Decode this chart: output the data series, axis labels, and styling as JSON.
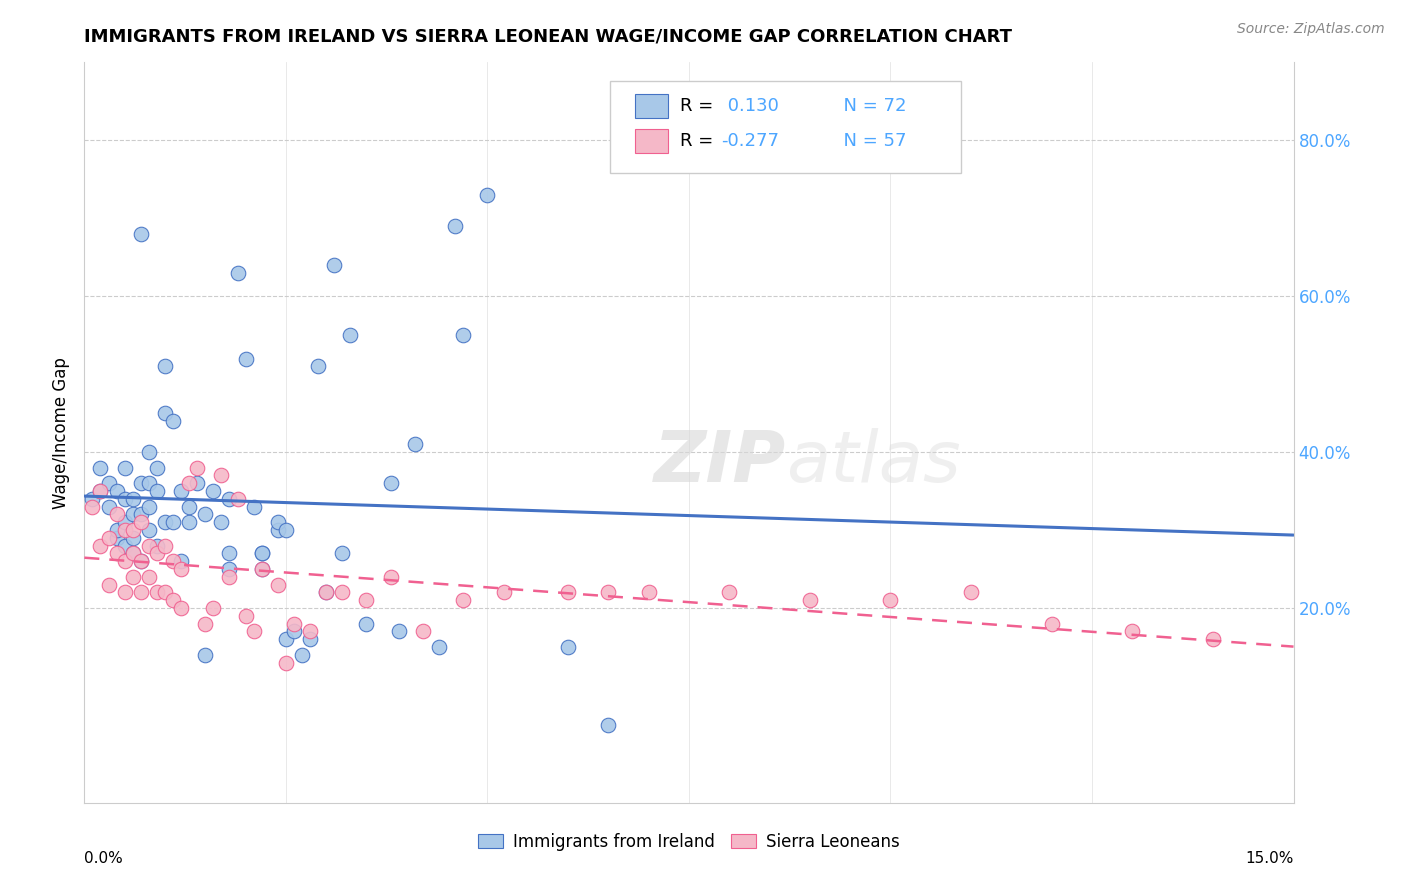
{
  "title": "IMMIGRANTS FROM IRELAND VS SIERRA LEONEAN WAGE/INCOME GAP CORRELATION CHART",
  "source": "Source: ZipAtlas.com",
  "ylabel": "Wage/Income Gap",
  "legend_ireland": "Immigrants from Ireland",
  "legend_sierra": "Sierra Leoneans",
  "R_ireland": 0.13,
  "N_ireland": 72,
  "R_sierra": -0.277,
  "N_sierra": 57,
  "color_ireland": "#a8c8e8",
  "color_sierra": "#f5b8c8",
  "color_ireland_line": "#4472c4",
  "color_sierra_line": "#f06090",
  "color_right_axis": "#4da6ff",
  "xlim": [
    0.0,
    0.15
  ],
  "ylim": [
    -0.05,
    0.9
  ],
  "right_ytick_vals": [
    0.8,
    0.6,
    0.4,
    0.2
  ],
  "right_yticks": [
    "80.0%",
    "60.0%",
    "40.0%",
    "20.0%"
  ],
  "ireland_x": [
    0.001,
    0.002,
    0.002,
    0.003,
    0.003,
    0.004,
    0.004,
    0.004,
    0.005,
    0.005,
    0.005,
    0.005,
    0.006,
    0.006,
    0.006,
    0.006,
    0.007,
    0.007,
    0.007,
    0.007,
    0.008,
    0.008,
    0.008,
    0.008,
    0.009,
    0.009,
    0.009,
    0.01,
    0.01,
    0.01,
    0.011,
    0.011,
    0.012,
    0.012,
    0.013,
    0.013,
    0.014,
    0.015,
    0.016,
    0.017,
    0.018,
    0.018,
    0.019,
    0.02,
    0.021,
    0.022,
    0.022,
    0.024,
    0.024,
    0.025,
    0.026,
    0.027,
    0.028,
    0.029,
    0.031,
    0.032,
    0.033,
    0.038,
    0.039,
    0.041,
    0.044,
    0.046,
    0.047,
    0.05,
    0.015,
    0.018,
    0.022,
    0.025,
    0.03,
    0.035,
    0.06,
    0.065
  ],
  "ireland_y": [
    0.34,
    0.38,
    0.35,
    0.33,
    0.36,
    0.29,
    0.3,
    0.35,
    0.28,
    0.31,
    0.34,
    0.38,
    0.27,
    0.29,
    0.32,
    0.34,
    0.26,
    0.32,
    0.36,
    0.68,
    0.3,
    0.33,
    0.36,
    0.4,
    0.28,
    0.35,
    0.38,
    0.31,
    0.45,
    0.51,
    0.31,
    0.44,
    0.26,
    0.35,
    0.31,
    0.33,
    0.36,
    0.32,
    0.35,
    0.31,
    0.27,
    0.34,
    0.63,
    0.52,
    0.33,
    0.25,
    0.27,
    0.3,
    0.31,
    0.16,
    0.17,
    0.14,
    0.16,
    0.51,
    0.64,
    0.27,
    0.55,
    0.36,
    0.17,
    0.41,
    0.15,
    0.69,
    0.55,
    0.73,
    0.14,
    0.25,
    0.27,
    0.3,
    0.22,
    0.18,
    0.15,
    0.05
  ],
  "sierra_x": [
    0.001,
    0.002,
    0.002,
    0.003,
    0.003,
    0.004,
    0.004,
    0.005,
    0.005,
    0.005,
    0.006,
    0.006,
    0.006,
    0.007,
    0.007,
    0.007,
    0.008,
    0.008,
    0.009,
    0.009,
    0.01,
    0.01,
    0.011,
    0.011,
    0.012,
    0.012,
    0.013,
    0.014,
    0.015,
    0.016,
    0.017,
    0.018,
    0.019,
    0.02,
    0.021,
    0.022,
    0.024,
    0.025,
    0.026,
    0.028,
    0.03,
    0.032,
    0.035,
    0.038,
    0.042,
    0.047,
    0.052,
    0.06,
    0.065,
    0.07,
    0.08,
    0.09,
    0.1,
    0.11,
    0.12,
    0.13,
    0.14
  ],
  "sierra_y": [
    0.33,
    0.35,
    0.28,
    0.23,
    0.29,
    0.27,
    0.32,
    0.22,
    0.26,
    0.3,
    0.24,
    0.27,
    0.3,
    0.22,
    0.26,
    0.31,
    0.24,
    0.28,
    0.22,
    0.27,
    0.22,
    0.28,
    0.21,
    0.26,
    0.2,
    0.25,
    0.36,
    0.38,
    0.18,
    0.2,
    0.37,
    0.24,
    0.34,
    0.19,
    0.17,
    0.25,
    0.23,
    0.13,
    0.18,
    0.17,
    0.22,
    0.22,
    0.21,
    0.24,
    0.17,
    0.21,
    0.22,
    0.22,
    0.22,
    0.22,
    0.22,
    0.21,
    0.21,
    0.22,
    0.18,
    0.17,
    0.16
  ]
}
